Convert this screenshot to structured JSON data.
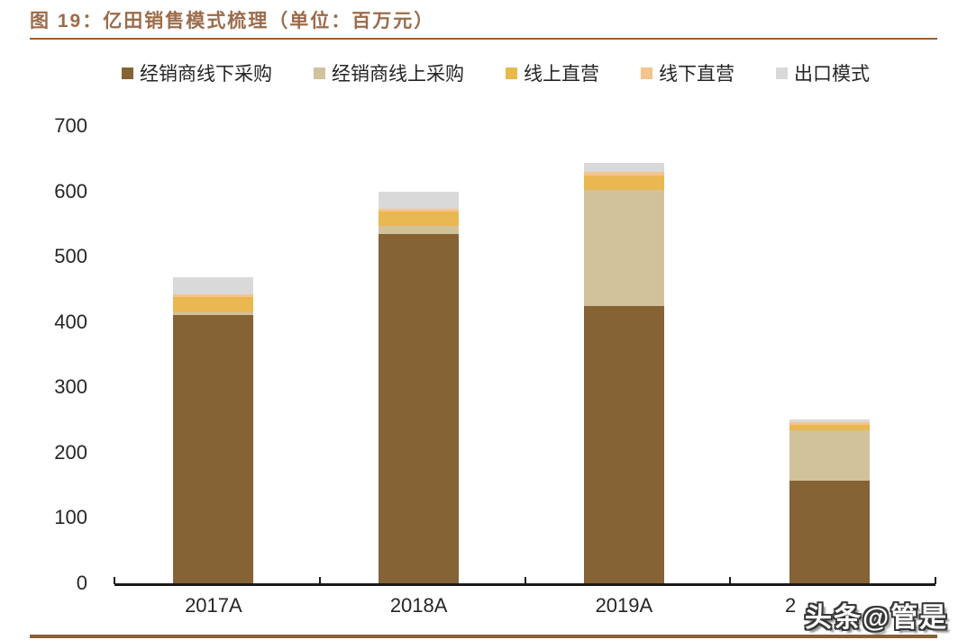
{
  "page": {
    "title": "图 19：亿田销售模式梳理（单位：百万元）",
    "watermark": "头条@管是",
    "colors": {
      "title_text": "#9c6b4a",
      "title_rule": "#9c5f33",
      "footer_bar": "#8a5f36",
      "axis": "#1a1a1a",
      "label_text": "#262626"
    }
  },
  "chart_data": {
    "type": "bar",
    "stacked": true,
    "title": "亿田销售模式梳理",
    "unit": "百万元",
    "categories": [
      "2017A",
      "2018A",
      "2019A",
      "2"
    ],
    "fourth_category_visible_text": "2",
    "series": [
      {
        "name": "经销商线下采购",
        "color": "#866334",
        "values": [
          415,
          539,
          428,
          161
        ]
      },
      {
        "name": "经销商线上采购",
        "color": "#d2c29c",
        "values": [
          4,
          12,
          178,
          77
        ]
      },
      {
        "name": "线上直营",
        "color": "#eab850",
        "values": [
          23,
          22,
          22,
          9
        ]
      },
      {
        "name": "线下直营",
        "color": "#f5c38c",
        "values": [
          5,
          5,
          6,
          4
        ]
      },
      {
        "name": "出口模式",
        "color": "#d9d9d9",
        "texture": "speckled",
        "values": [
          26,
          26,
          14,
          4
        ]
      }
    ],
    "totals": [
      473,
      604,
      648,
      255
    ],
    "ylim": [
      0,
      700
    ],
    "yticks": [
      0,
      100,
      200,
      300,
      400,
      500,
      600,
      700
    ],
    "grid": false,
    "legend_position": "top"
  }
}
